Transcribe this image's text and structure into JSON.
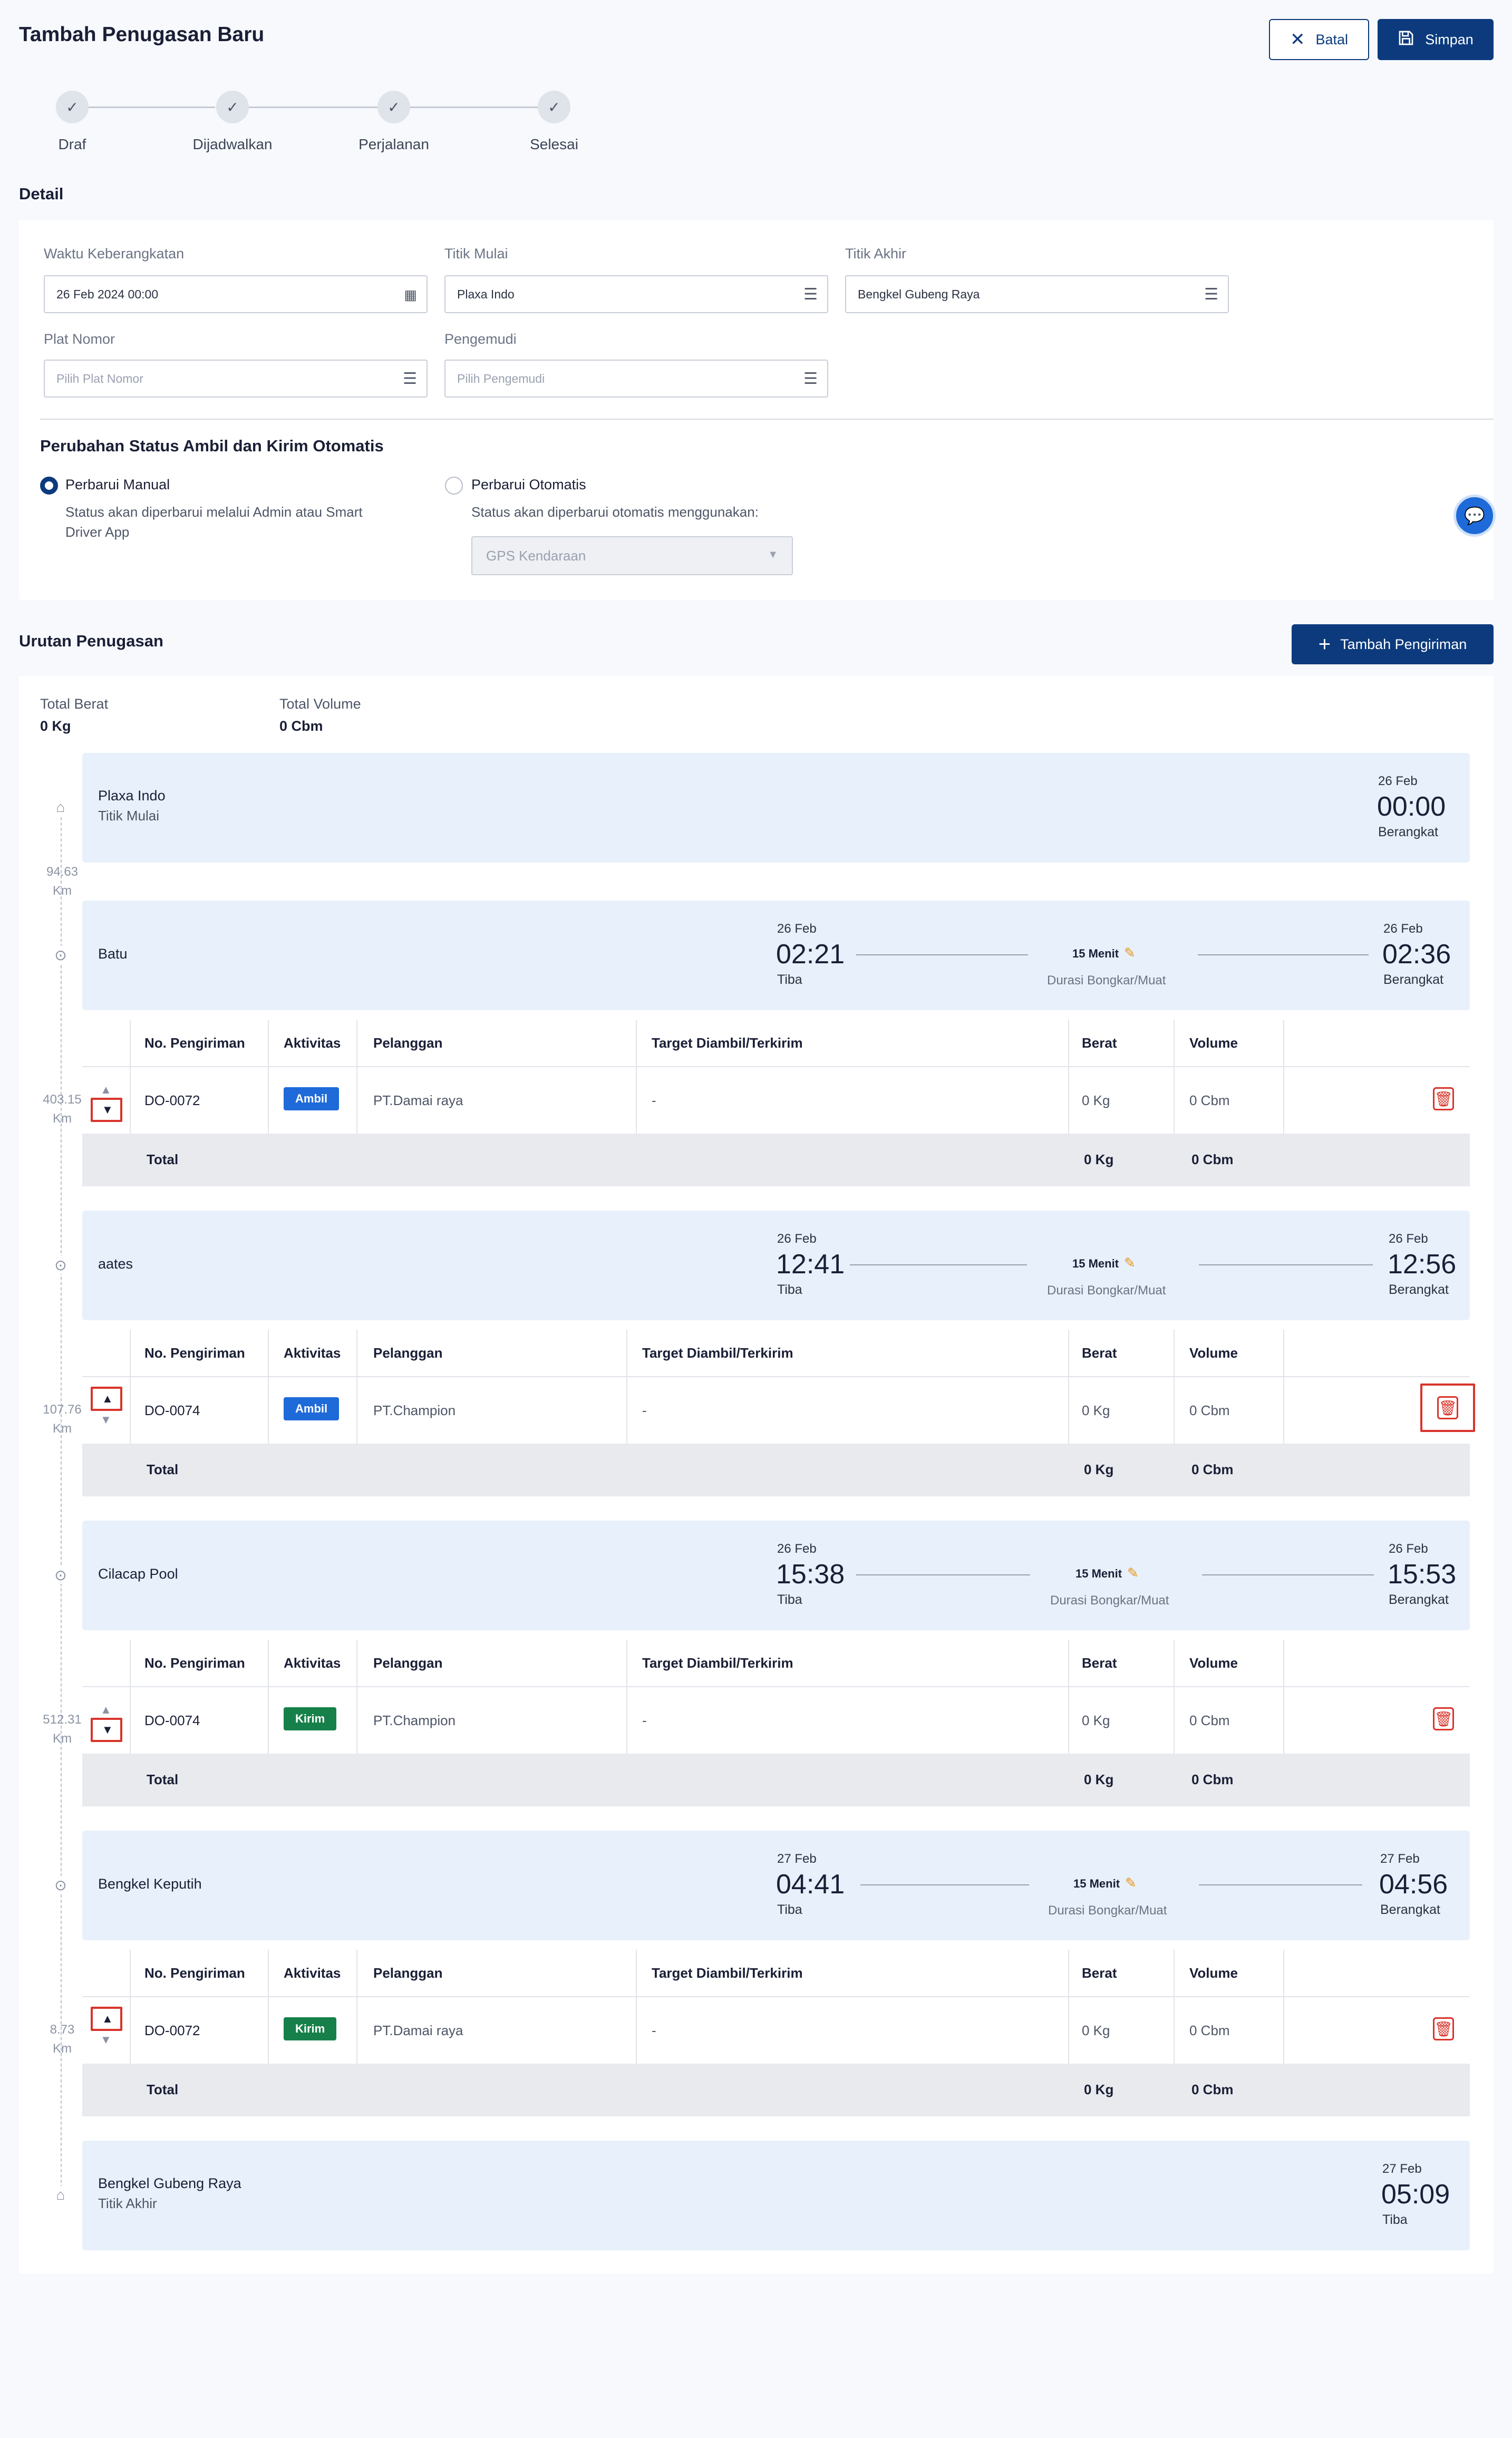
{
  "header": {
    "title": "Tambah Penugasan Baru",
    "cancel_label": "Batal",
    "save_label": "Simpan"
  },
  "steps": [
    {
      "label": "Draf"
    },
    {
      "label": "Dijadwalkan"
    },
    {
      "label": "Perjalanan"
    },
    {
      "label": "Selesai"
    }
  ],
  "detail": {
    "title": "Detail",
    "departure": {
      "label": "Waktu Keberangkatan",
      "value": "26 Feb 2024 00:00"
    },
    "start": {
      "label": "Titik Mulai",
      "value": "Plaxa Indo"
    },
    "end": {
      "label": "Titik Akhir",
      "value": "Bengkel Gubeng Raya"
    },
    "plate": {
      "label": "Plat Nomor",
      "placeholder": "Pilih Plat Nomor"
    },
    "driver": {
      "label": "Pengemudi",
      "placeholder": "Pilih Pengemudi"
    },
    "auto_status": {
      "title": "Perubahan Status Ambil dan Kirim Otomatis",
      "manual_label": "Perbarui Manual",
      "manual_desc_1": "Status akan diperbarui melalui Admin atau Smart",
      "manual_desc_2": "Driver App",
      "auto_label": "Perbarui Otomatis",
      "auto_desc": "Status akan diperbarui otomatis menggunakan:",
      "auto_select": "GPS Kendaraan",
      "selected": "manual"
    }
  },
  "urutan": {
    "title": "Urutan Penugasan",
    "add_label": "Tambah Pengiriman",
    "total_berat_label": "Total Berat",
    "total_berat": "0 Kg",
    "total_volume_label": "Total Volume",
    "total_volume": "0 Cbm"
  },
  "table_headers": {
    "no": "No. Pengiriman",
    "aktivitas": "Aktivitas",
    "pelanggan": "Pelanggan",
    "target": "Target Diambil/Terkirim",
    "berat": "Berat",
    "volume": "Volume"
  },
  "start_stop": {
    "name": "Plaxa Indo",
    "sub": "Titik Mulai",
    "date": "26 Feb",
    "time": "00:00",
    "cap": "Berangkat"
  },
  "end_stop": {
    "name": "Bengkel Gubeng Raya",
    "sub": "Titik Akhir",
    "date": "27 Feb",
    "time": "05:09",
    "cap": "Tiba"
  },
  "stops": [
    {
      "name": "Batu",
      "arr_date": "26 Feb",
      "arr_time": "02:21",
      "arr_cap": "Tiba",
      "duration": "15 Menit",
      "duration_cap": "Durasi Bongkar/Muat",
      "dep_date": "26 Feb",
      "dep_time": "02:36",
      "dep_cap": "Berangkat",
      "distance": "94.63",
      "distance_unit": "Km",
      "row": {
        "no": "DO-0072",
        "aktivitas": "Ambil",
        "pelanggan": "PT.Damai raya",
        "target": "-",
        "berat": "0 Kg",
        "volume": "0 Cbm"
      },
      "total": {
        "label": "Total",
        "berat": "0 Kg",
        "volume": "0 Cbm"
      }
    },
    {
      "name": "aates",
      "arr_date": "26 Feb",
      "arr_time": "12:41",
      "arr_cap": "Tiba",
      "duration": "15 Menit",
      "duration_cap": "Durasi Bongkar/Muat",
      "dep_date": "26 Feb",
      "dep_time": "12:56",
      "dep_cap": "Berangkat",
      "distance": "403.15",
      "distance_unit": "Km",
      "row": {
        "no": "DO-0074",
        "aktivitas": "Ambil",
        "pelanggan": "PT.Champion",
        "target": "-",
        "berat": "0 Kg",
        "volume": "0 Cbm"
      },
      "total": {
        "label": "Total",
        "berat": "0 Kg",
        "volume": "0 Cbm"
      }
    },
    {
      "name": "Cilacap Pool",
      "arr_date": "26 Feb",
      "arr_time": "15:38",
      "arr_cap": "Tiba",
      "duration": "15 Menit",
      "duration_cap": "Durasi Bongkar/Muat",
      "dep_date": "26 Feb",
      "dep_time": "15:53",
      "dep_cap": "Berangkat",
      "distance": "107.76",
      "distance_unit": "Km",
      "row": {
        "no": "DO-0074",
        "aktivitas": "Kirim",
        "pelanggan": "PT.Champion",
        "target": "-",
        "berat": "0 Kg",
        "volume": "0 Cbm"
      },
      "total": {
        "label": "Total",
        "berat": "0 Kg",
        "volume": "0 Cbm"
      }
    },
    {
      "name": "Bengkel Keputih",
      "arr_date": "27 Feb",
      "arr_time": "04:41",
      "arr_cap": "Tiba",
      "duration": "15 Menit",
      "duration_cap": "Durasi Bongkar/Muat",
      "dep_date": "27 Feb",
      "dep_time": "04:56",
      "dep_cap": "Berangkat",
      "distance": "512.31",
      "distance_unit": "Km",
      "row": {
        "no": "DO-0072",
        "aktivitas": "Kirim",
        "pelanggan": "PT.Damai raya",
        "target": "-",
        "berat": "0 Kg",
        "volume": "0 Cbm"
      },
      "total": {
        "label": "Total",
        "berat": "0 Kg",
        "volume": "0 Cbm"
      }
    }
  ],
  "last_distance": "8.73",
  "last_distance_unit": "Km",
  "colors": {
    "primary": "#0c3a7d",
    "ambil": "#1e6ad8",
    "kirim": "#17804a",
    "danger": "#d9342b",
    "stop_bg": "#e8f0fb"
  }
}
